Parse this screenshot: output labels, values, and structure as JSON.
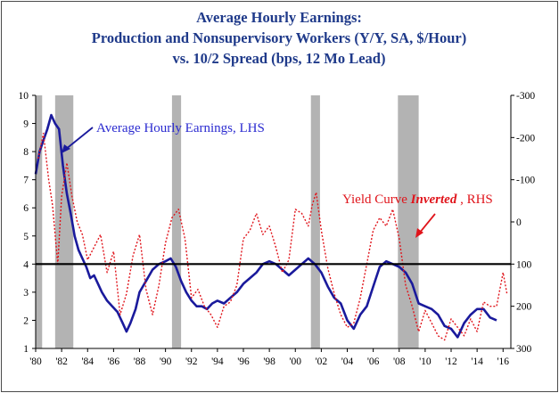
{
  "chart_data": {
    "type": "line",
    "title_lines": [
      "Average Hourly Earnings:",
      "Production and Nonsupervisory Workers (Y/Y, SA, $/Hour)",
      "vs. 10/2 Spread (bps, 12 Mo Lead)"
    ],
    "x_ticks": [
      "'80",
      "'82",
      "'84",
      "'86",
      "'88",
      "'90",
      "'92",
      "'94",
      "'96",
      "'98",
      "'00",
      "'02",
      "'04",
      "'06",
      "'08",
      "'10",
      "'12",
      "'14",
      "'16"
    ],
    "x_range": [
      1980,
      2016.6
    ],
    "y_left": {
      "ticks": [
        "1",
        "2",
        "3",
        "4",
        "5",
        "6",
        "7",
        "8",
        "9",
        "10"
      ],
      "range": [
        1,
        10
      ]
    },
    "y_right": {
      "ticks": [
        "-300",
        "-200",
        "-100",
        "0",
        "100",
        "200",
        "300"
      ],
      "range": [
        -300,
        300
      ],
      "inverted": true
    },
    "reference_line": {
      "axis": "left",
      "value": 4.0,
      "color": "#000000"
    },
    "recessions": [
      [
        1980.0,
        1980.5
      ],
      [
        1981.5,
        1982.9
      ],
      [
        1990.5,
        1991.2
      ],
      [
        2001.2,
        2001.9
      ],
      [
        2007.9,
        2009.5
      ]
    ],
    "annotations": {
      "earnings": "Average Hourly Earnings, LHS",
      "yield_prefix": "Yield Curve ",
      "yield_italic": "Inverted",
      "yield_suffix": " , RHS"
    },
    "series": [
      {
        "key": "earnings",
        "axis": "left",
        "color": "#1a1a9c",
        "x": [
          1980.0,
          1980.3,
          1980.6,
          1980.9,
          1981.2,
          1981.5,
          1981.8,
          1982.1,
          1982.4,
          1982.7,
          1983.0,
          1983.3,
          1983.6,
          1983.9,
          1984.2,
          1984.5,
          1984.8,
          1985.1,
          1985.5,
          1985.9,
          1986.3,
          1986.7,
          1987.0,
          1987.3,
          1987.7,
          1988.0,
          1988.5,
          1989.0,
          1989.5,
          1990.0,
          1990.4,
          1990.8,
          1991.2,
          1991.6,
          1992.0,
          1992.4,
          1992.8,
          1993.2,
          1993.6,
          1994.0,
          1994.5,
          1995.0,
          1995.5,
          1996.0,
          1996.5,
          1997.0,
          1997.5,
          1998.0,
          1998.5,
          1999.0,
          1999.5,
          2000.0,
          2000.5,
          2001.0,
          2001.5,
          2002.0,
          2002.5,
          2003.0,
          2003.5,
          2004.0,
          2004.5,
          2005.0,
          2005.5,
          2006.0,
          2006.5,
          2007.0,
          2007.5,
          2008.0,
          2008.5,
          2009.0,
          2009.5,
          2010.0,
          2010.5,
          2011.0,
          2011.5,
          2012.0,
          2012.5,
          2013.0,
          2013.5,
          2014.0,
          2014.5,
          2015.0,
          2015.5
        ],
        "values": [
          7.2,
          8.0,
          8.4,
          8.8,
          9.3,
          9.0,
          8.8,
          7.5,
          6.5,
          5.8,
          5.0,
          4.5,
          4.2,
          3.9,
          3.5,
          3.6,
          3.3,
          3.0,
          2.7,
          2.5,
          2.3,
          1.9,
          1.6,
          1.9,
          2.4,
          3.0,
          3.4,
          3.8,
          4.0,
          4.1,
          4.2,
          3.9,
          3.4,
          3.0,
          2.7,
          2.5,
          2.5,
          2.4,
          2.6,
          2.7,
          2.6,
          2.8,
          3.0,
          3.3,
          3.5,
          3.7,
          4.0,
          4.1,
          4.0,
          3.8,
          3.6,
          3.8,
          4.0,
          4.2,
          4.0,
          3.7,
          3.2,
          2.8,
          2.6,
          2.0,
          1.7,
          2.2,
          2.5,
          3.2,
          3.9,
          4.1,
          4.0,
          3.9,
          3.7,
          3.3,
          2.6,
          2.5,
          2.4,
          2.2,
          1.8,
          1.7,
          1.4,
          1.9,
          2.2,
          2.4,
          2.4,
          2.1,
          2.0
        ]
      },
      {
        "key": "yield",
        "axis": "right",
        "color": "#e0141b",
        "dash": true,
        "x": [
          1980.2,
          1980.6,
          1981.0,
          1981.3,
          1981.7,
          1982.0,
          1982.4,
          1982.8,
          1983.2,
          1983.6,
          1984.0,
          1984.5,
          1985.0,
          1985.5,
          1986.0,
          1986.5,
          1987.0,
          1987.5,
          1988.0,
          1988.5,
          1989.0,
          1989.5,
          1990.0,
          1990.5,
          1991.0,
          1991.5,
          1992.0,
          1992.5,
          1993.0,
          1993.5,
          1994.0,
          1994.5,
          1995.0,
          1995.5,
          1996.0,
          1996.5,
          1997.0,
          1997.5,
          1998.0,
          1998.5,
          1999.0,
          1999.5,
          2000.0,
          2000.5,
          2001.0,
          2001.3,
          2001.6,
          2002.0,
          2002.5,
          2003.0,
          2003.5,
          2004.0,
          2004.5,
          2005.0,
          2005.5,
          2006.0,
          2006.5,
          2007.0,
          2007.5,
          2008.0,
          2008.5,
          2009.0,
          2009.5,
          2010.0,
          2010.5,
          2011.0,
          2011.5,
          2012.0,
          2012.5,
          2013.0,
          2013.5,
          2014.0,
          2014.5,
          2015.0,
          2015.5,
          2016.0,
          2016.3
        ],
        "values": [
          -150,
          -210,
          -100,
          -40,
          100,
          -60,
          -140,
          -60,
          0,
          30,
          90,
          60,
          30,
          120,
          70,
          220,
          170,
          80,
          30,
          160,
          220,
          150,
          50,
          -10,
          -30,
          40,
          180,
          160,
          200,
          220,
          250,
          200,
          190,
          150,
          40,
          20,
          -20,
          30,
          10,
          60,
          120,
          90,
          -30,
          -20,
          10,
          -40,
          -70,
          20,
          110,
          170,
          220,
          250,
          240,
          180,
          100,
          20,
          -10,
          10,
          -30,
          40,
          150,
          200,
          260,
          210,
          240,
          270,
          280,
          230,
          250,
          270,
          230,
          260,
          190,
          200,
          200,
          120,
          170
        ]
      }
    ]
  }
}
